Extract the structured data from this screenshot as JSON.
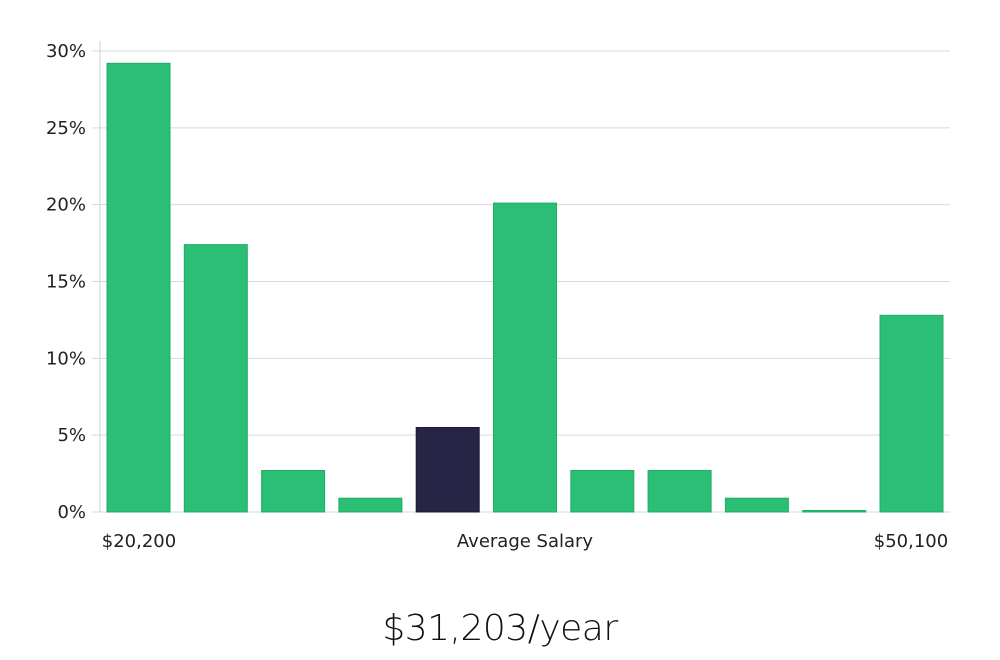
{
  "chart_data": {
    "type": "bar",
    "categories": [
      "1",
      "2",
      "3",
      "4",
      "5",
      "6",
      "7",
      "8",
      "9",
      "10",
      "11"
    ],
    "values": [
      29.2,
      17.4,
      2.7,
      0.9,
      5.5,
      20.1,
      2.7,
      2.7,
      0.9,
      0.1,
      12.8
    ],
    "highlight_index": 4,
    "ylim": [
      0,
      30
    ],
    "yticks": [
      0,
      5,
      10,
      15,
      20,
      25,
      30
    ],
    "ytick_suffix": "%",
    "grid": true,
    "x_labels": {
      "left": "$20,200",
      "center": "Average Salary",
      "right": "$50,100"
    }
  },
  "colors": {
    "bar": "#2bbf75",
    "bar_edge": "#1fae63",
    "highlight": "#272445",
    "grid": "#d9d9d9",
    "axis": "#cfcfcf"
  },
  "salary": {
    "value": "$31,203/year"
  }
}
